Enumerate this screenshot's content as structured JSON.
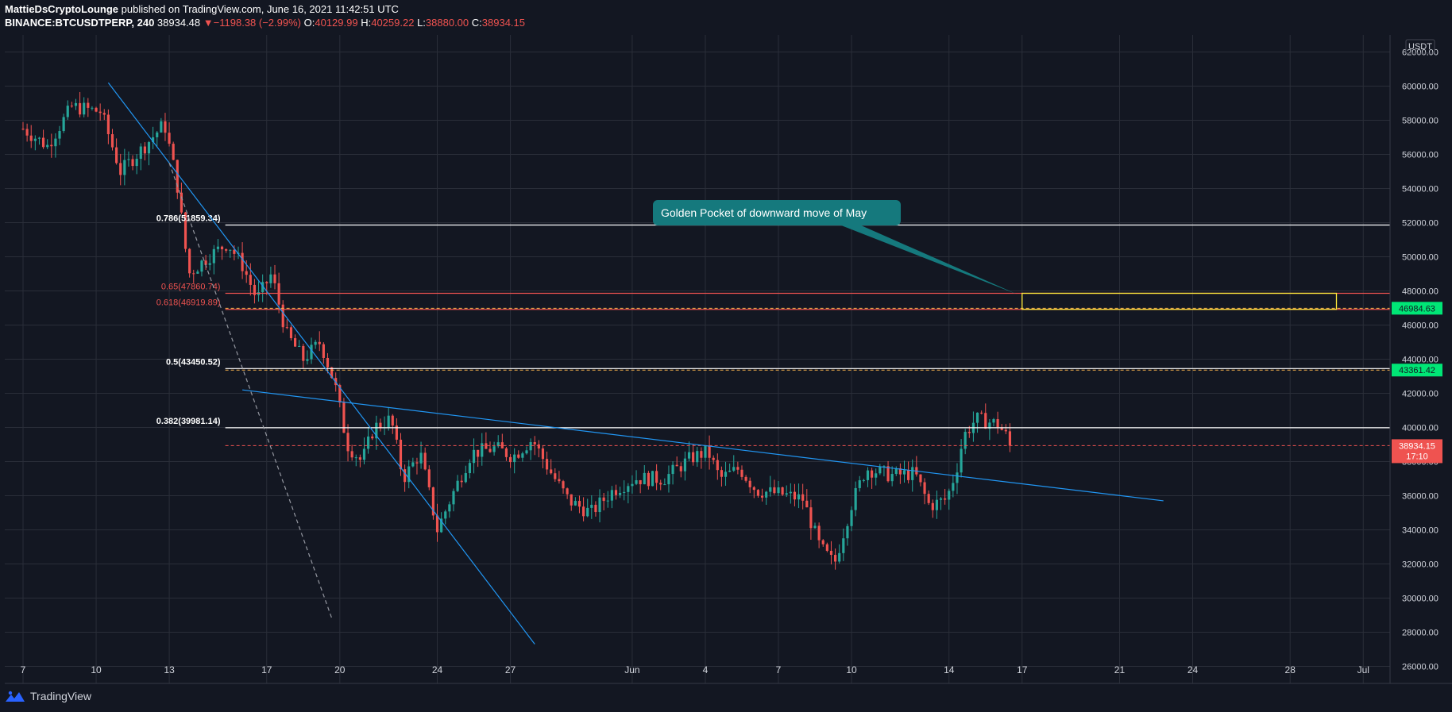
{
  "header": {
    "author": "MattieDsCryptoLounge",
    "published_text": "published on TradingView.com, June 16, 2021 11:42:51 UTC",
    "symbol": "BINANCE:BTCUSDTPERP, 240",
    "last": "38934.48",
    "change_arrow": "▼",
    "change": "−1198.38 (−2.99%)",
    "o_label": "O:",
    "o": "40129.99",
    "h_label": "H:",
    "h": "40259.22",
    "l_label": "L:",
    "l": "38880.00",
    "c_label": "C:",
    "c": "38934.15"
  },
  "footer": {
    "brand": "TradingView",
    "logo_icon": "tradingview-logo-icon"
  },
  "colors": {
    "background": "#131722",
    "grid": "#2a2e39",
    "up": "#26a69a",
    "down": "#ef5350",
    "trendline": "#2196f3",
    "fib_white": "#ffffff",
    "fib_red": "#ef5350",
    "callout": "#15797d",
    "box": "#ffeb3b",
    "green_label": "#00e676"
  },
  "chart_data": {
    "type": "candlestick",
    "currency_label": "USDT",
    "ylim": [
      25000,
      63000
    ],
    "y_ticks": [
      26000,
      28000,
      30000,
      32000,
      34000,
      36000,
      38000,
      40000,
      42000,
      44000,
      46000,
      48000,
      50000,
      52000,
      54000,
      56000,
      58000,
      60000,
      62000
    ],
    "x_ticks": [
      {
        "label": "7",
        "day": 0
      },
      {
        "label": "10",
        "day": 3
      },
      {
        "label": "13",
        "day": 6
      },
      {
        "label": "17",
        "day": 10
      },
      {
        "label": "20",
        "day": 13
      },
      {
        "label": "24",
        "day": 17
      },
      {
        "label": "27",
        "day": 20
      },
      {
        "label": "Jun",
        "day": 25
      },
      {
        "label": "4",
        "day": 28
      },
      {
        "label": "7",
        "day": 31
      },
      {
        "label": "10",
        "day": 34
      },
      {
        "label": "14",
        "day": 38
      },
      {
        "label": "17",
        "day": 41
      },
      {
        "label": "21",
        "day": 45
      },
      {
        "label": "24",
        "day": 48
      },
      {
        "label": "28",
        "day": 52
      },
      {
        "label": "Jul",
        "day": 55
      }
    ],
    "x_range_days": [
      -0.75,
      56.1
    ],
    "anchors": [
      {
        "day": 0.0,
        "price": 57500
      },
      {
        "day": 1.0,
        "price": 56500
      },
      {
        "day": 2.0,
        "price": 58800
      },
      {
        "day": 3.2,
        "price": 58500
      },
      {
        "day": 4.0,
        "price": 55000
      },
      {
        "day": 5.0,
        "price": 56500
      },
      {
        "day": 5.8,
        "price": 57800
      },
      {
        "day": 6.3,
        "price": 54500
      },
      {
        "day": 6.8,
        "price": 49000
      },
      {
        "day": 7.6,
        "price": 50000
      },
      {
        "day": 8.4,
        "price": 50800
      },
      {
        "day": 9.0,
        "price": 49500
      },
      {
        "day": 9.6,
        "price": 47500
      },
      {
        "day": 10.2,
        "price": 49000
      },
      {
        "day": 10.8,
        "price": 45500
      },
      {
        "day": 11.5,
        "price": 44000
      },
      {
        "day": 12.2,
        "price": 45000
      },
      {
        "day": 12.8,
        "price": 42500
      },
      {
        "day": 13.3,
        "price": 39000
      },
      {
        "day": 13.9,
        "price": 38000
      },
      {
        "day": 14.4,
        "price": 40000
      },
      {
        "day": 15.1,
        "price": 40500
      },
      {
        "day": 15.6,
        "price": 37000
      },
      {
        "day": 16.3,
        "price": 38500
      },
      {
        "day": 17.0,
        "price": 34000
      },
      {
        "day": 17.6,
        "price": 36000
      },
      {
        "day": 18.4,
        "price": 38500
      },
      {
        "day": 19.4,
        "price": 38800
      },
      {
        "day": 20.1,
        "price": 38300
      },
      {
        "day": 20.9,
        "price": 39300
      },
      {
        "day": 21.6,
        "price": 37500
      },
      {
        "day": 22.4,
        "price": 35700
      },
      {
        "day": 23.3,
        "price": 35000
      },
      {
        "day": 24.2,
        "price": 36300
      },
      {
        "day": 25.1,
        "price": 37000
      },
      {
        "day": 26.3,
        "price": 37000
      },
      {
        "day": 27.4,
        "price": 38200
      },
      {
        "day": 28.1,
        "price": 38600
      },
      {
        "day": 28.6,
        "price": 37000
      },
      {
        "day": 29.4,
        "price": 37600
      },
      {
        "day": 30.1,
        "price": 36300
      },
      {
        "day": 31.1,
        "price": 36100
      },
      {
        "day": 32.0,
        "price": 35800
      },
      {
        "day": 32.7,
        "price": 33000
      },
      {
        "day": 33.3,
        "price": 32000
      },
      {
        "day": 34.0,
        "price": 35500
      },
      {
        "day": 34.6,
        "price": 37600
      },
      {
        "day": 35.6,
        "price": 37200
      },
      {
        "day": 36.6,
        "price": 37300
      },
      {
        "day": 37.2,
        "price": 35400
      },
      {
        "day": 37.9,
        "price": 35800
      },
      {
        "day": 38.3,
        "price": 37500
      },
      {
        "day": 38.6,
        "price": 39500
      },
      {
        "day": 39.1,
        "price": 40500
      },
      {
        "day": 40.0,
        "price": 40200
      },
      {
        "day": 40.55,
        "price": 39100
      }
    ],
    "fib_levels": [
      {
        "label": "0.786(51859.34)",
        "price": 51859.34,
        "color": "#ffffff",
        "bold": true
      },
      {
        "label": "0.65(47860.74)",
        "price": 47860.74,
        "color": "#ef5350",
        "bold": false
      },
      {
        "label": "0.618(46919.89)",
        "price": 46919.89,
        "color": "#ef5350",
        "bold": false
      },
      {
        "label": "0.5(43450.52)",
        "price": 43450.52,
        "color": "#ffffff",
        "bold": true
      },
      {
        "label": "0.382(39981.14)",
        "price": 39981.14,
        "color": "#ffffff",
        "bold": true
      }
    ],
    "price_labels": [
      {
        "text": "46984.63",
        "price": 46984.63,
        "bg": "#00e676",
        "fg": "#131722"
      },
      {
        "text": "43361.42",
        "price": 43361.42,
        "bg": "#00e676",
        "fg": "#131722"
      },
      {
        "text": "38934.15",
        "sub": "17:10",
        "price": 38934.15,
        "bg": "#ef5350",
        "fg": "#ffffff"
      }
    ],
    "trendlines": [
      {
        "from": [
          3.5,
          60200
        ],
        "to": [
          21.0,
          27300
        ],
        "style": "solid"
      },
      {
        "from": [
          9.0,
          42200
        ],
        "to": [
          46.8,
          35700
        ],
        "style": "solid"
      },
      {
        "from": [
          6.0,
          55500
        ],
        "to": [
          12.7,
          28700
        ],
        "style": "dashed"
      }
    ],
    "golden_pocket_box": {
      "day_start": 41.0,
      "day_end": 53.9,
      "price_top": 47860.74,
      "price_bottom": 46919.89
    },
    "annotation": {
      "text": "Golden Pocket of downward move of May",
      "pointer_day": 40.8,
      "pointer_price": 47800
    }
  }
}
